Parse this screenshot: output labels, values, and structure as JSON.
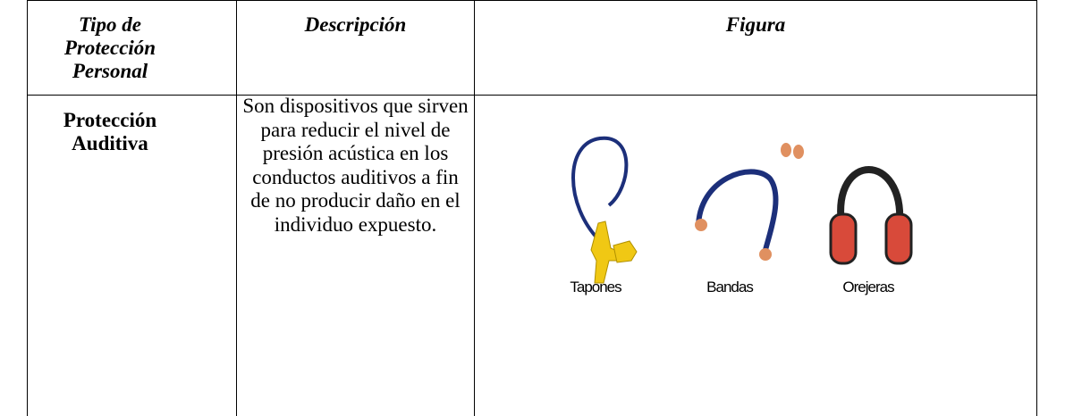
{
  "table": {
    "header": [
      "Tipo de Protección Personal",
      "Descripción",
      "Figura"
    ],
    "rows": [
      [
        "Protección Auditiva",
        "Son dispositivos que sirven para reducir el nivel de presión acústica en los conductos auditivos a fin de no producir daño en el individuo expuesto.",
        {
          "labels": [
            "Tapones",
            "Bandas",
            "Orejeras"
          ]
        }
      ]
    ]
  }
}
